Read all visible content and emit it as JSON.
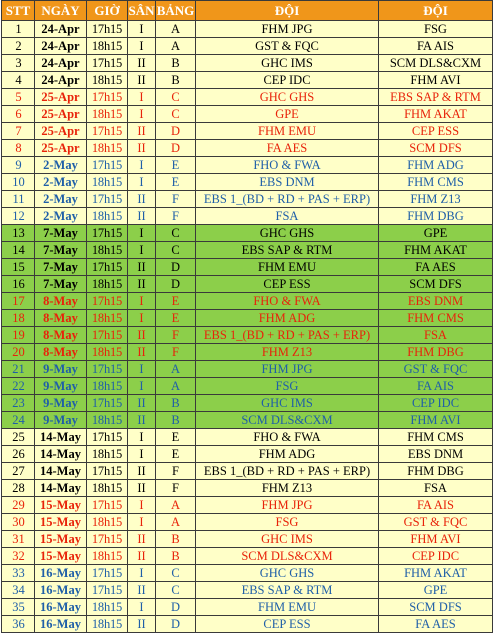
{
  "headers": {
    "stt": "STT",
    "ngay": "NGÀY",
    "gio": "GIỜ",
    "san": "SÂN",
    "bang": "BẢNG",
    "doi1": "ĐỘI",
    "doi2": "ĐỘI"
  },
  "colors": {
    "header_bg": "#f0961a",
    "default_bg": "#ffffc8",
    "green_bg": "#8ccf4a",
    "black": "#000000",
    "red": "#e8230a",
    "blue": "#1f5fa8"
  },
  "rows": [
    {
      "stt": "1",
      "date": "24-Apr",
      "time": "17h15",
      "court": "I",
      "group": "A",
      "team1": "FHM JPG",
      "team2": "FSG",
      "bg": "default",
      "color": "black"
    },
    {
      "stt": "2",
      "date": "24-Apr",
      "time": "18h15",
      "court": "I",
      "group": "A",
      "team1": "GST & FQC",
      "team2": "FA AIS",
      "bg": "default",
      "color": "black"
    },
    {
      "stt": "3",
      "date": "24-Apr",
      "time": "17h15",
      "court": "II",
      "group": "B",
      "team1": "GHC IMS",
      "team2": "SCM DLS&CXM",
      "bg": "default",
      "color": "black"
    },
    {
      "stt": "4",
      "date": "24-Apr",
      "time": "18h15",
      "court": "II",
      "group": "B",
      "team1": "CEP IDC",
      "team2": "FHM AVI",
      "bg": "default",
      "color": "black"
    },
    {
      "stt": "5",
      "date": "25-Apr",
      "time": "17h15",
      "court": "I",
      "group": "C",
      "team1": "GHC GHS",
      "team2": "EBS SAP & RTM",
      "bg": "default",
      "color": "red"
    },
    {
      "stt": "6",
      "date": "25-Apr",
      "time": "18h15",
      "court": "I",
      "group": "C",
      "team1": "GPE",
      "team2": "FHM AKAT",
      "bg": "default",
      "color": "red"
    },
    {
      "stt": "7",
      "date": "25-Apr",
      "time": "17h15",
      "court": "II",
      "group": "D",
      "team1": "FHM EMU",
      "team2": "CEP ESS",
      "bg": "default",
      "color": "red"
    },
    {
      "stt": "8",
      "date": "25-Apr",
      "time": "18h15",
      "court": "II",
      "group": "D",
      "team1": "FA AES",
      "team2": "SCM DFS",
      "bg": "default",
      "color": "red"
    },
    {
      "stt": "9",
      "date": "2-May",
      "time": "17h15",
      "court": "I",
      "group": "E",
      "team1": "FHO & FWA",
      "team2": "FHM ADG",
      "bg": "default",
      "color": "blue"
    },
    {
      "stt": "10",
      "date": "2-May",
      "time": "18h15",
      "court": "I",
      "group": "E",
      "team1": "EBS DNM",
      "team2": "FHM CMS",
      "bg": "default",
      "color": "blue"
    },
    {
      "stt": "11",
      "date": "2-May",
      "time": "17h15",
      "court": "II",
      "group": "F",
      "team1": "EBS 1_(BD + RD + PAS + ERP)",
      "team2": "FHM Z13",
      "bg": "default",
      "color": "blue"
    },
    {
      "stt": "12",
      "date": "2-May",
      "time": "18h15",
      "court": "II",
      "group": "F",
      "team1": "FSA",
      "team2": "FHM DBG",
      "bg": "default",
      "color": "blue"
    },
    {
      "stt": "13",
      "date": "7-May",
      "time": "17h15",
      "court": "I",
      "group": "C",
      "team1": "GHC GHS",
      "team2": "GPE",
      "bg": "green",
      "color": "black"
    },
    {
      "stt": "14",
      "date": "7-May",
      "time": "18h15",
      "court": "I",
      "group": "C",
      "team1": "EBS SAP & RTM",
      "team2": "FHM AKAT",
      "bg": "green",
      "color": "black"
    },
    {
      "stt": "15",
      "date": "7-May",
      "time": "17h15",
      "court": "II",
      "group": "D",
      "team1": "FHM EMU",
      "team2": "FA AES",
      "bg": "green",
      "color": "black"
    },
    {
      "stt": "16",
      "date": "7-May",
      "time": "18h15",
      "court": "II",
      "group": "D",
      "team1": "CEP ESS",
      "team2": "SCM DFS",
      "bg": "green",
      "color": "black"
    },
    {
      "stt": "17",
      "date": "8-May",
      "time": "17h15",
      "court": "I",
      "group": "E",
      "team1": "FHO & FWA",
      "team2": "EBS DNM",
      "bg": "green",
      "color": "red"
    },
    {
      "stt": "18",
      "date": "8-May",
      "time": "18h15",
      "court": "I",
      "group": "E",
      "team1": "FHM ADG",
      "team2": "FHM CMS",
      "bg": "green",
      "color": "red"
    },
    {
      "stt": "19",
      "date": "8-May",
      "time": "17h15",
      "court": "II",
      "group": "F",
      "team1": "EBS 1_(BD + RD + PAS + ERP)",
      "team2": "FSA",
      "bg": "green",
      "color": "red"
    },
    {
      "stt": "20",
      "date": "8-May",
      "time": "18h15",
      "court": "II",
      "group": "F",
      "team1": "FHM Z13",
      "team2": "FHM DBG",
      "bg": "green",
      "color": "red"
    },
    {
      "stt": "21",
      "date": "9-May",
      "time": "17h15",
      "court": "I",
      "group": "A",
      "team1": "FHM JPG",
      "team2": "GST & FQC",
      "bg": "green",
      "color": "blue"
    },
    {
      "stt": "22",
      "date": "9-May",
      "time": "18h15",
      "court": "I",
      "group": "A",
      "team1": "FSG",
      "team2": "FA AIS",
      "bg": "green",
      "color": "blue"
    },
    {
      "stt": "23",
      "date": "9-May",
      "time": "17h15",
      "court": "II",
      "group": "B",
      "team1": "GHC IMS",
      "team2": "CEP IDC",
      "bg": "green",
      "color": "blue"
    },
    {
      "stt": "24",
      "date": "9-May",
      "time": "18h15",
      "court": "II",
      "group": "B",
      "team1": "SCM DLS&CXM",
      "team2": "FHM AVI",
      "bg": "green",
      "color": "blue"
    },
    {
      "stt": "25",
      "date": "14-May",
      "time": "17h15",
      "court": "I",
      "group": "E",
      "team1": "FHO & FWA",
      "team2": "FHM CMS",
      "bg": "default",
      "color": "black"
    },
    {
      "stt": "26",
      "date": "14-May",
      "time": "18h15",
      "court": "I",
      "group": "E",
      "team1": "FHM ADG",
      "team2": "EBS DNM",
      "bg": "default",
      "color": "black"
    },
    {
      "stt": "27",
      "date": "14-May",
      "time": "17h15",
      "court": "II",
      "group": "F",
      "team1": "EBS 1_(BD + RD + PAS + ERP)",
      "team2": "FHM DBG",
      "bg": "default",
      "color": "black"
    },
    {
      "stt": "28",
      "date": "14-May",
      "time": "18h15",
      "court": "II",
      "group": "F",
      "team1": "FHM Z13",
      "team2": "FSA",
      "bg": "default",
      "color": "black"
    },
    {
      "stt": "29",
      "date": "15-May",
      "time": "17h15",
      "court": "I",
      "group": "A",
      "team1": "FHM JPG",
      "team2": "FA AIS",
      "bg": "default",
      "color": "red"
    },
    {
      "stt": "30",
      "date": "15-May",
      "time": "18h15",
      "court": "I",
      "group": "A",
      "team1": "FSG",
      "team2": "GST & FQC",
      "bg": "default",
      "color": "red"
    },
    {
      "stt": "31",
      "date": "15-May",
      "time": "17h15",
      "court": "II",
      "group": "B",
      "team1": "GHC IMS",
      "team2": "FHM AVI",
      "bg": "default",
      "color": "red"
    },
    {
      "stt": "32",
      "date": "15-May",
      "time": "18h15",
      "court": "II",
      "group": "B",
      "team1": "SCM DLS&CXM",
      "team2": "CEP IDC",
      "bg": "default",
      "color": "red"
    },
    {
      "stt": "33",
      "date": "16-May",
      "time": "17h15",
      "court": "I",
      "group": "C",
      "team1": "GHC GHS",
      "team2": "FHM AKAT",
      "bg": "default",
      "color": "blue"
    },
    {
      "stt": "34",
      "date": "16-May",
      "time": "17h15",
      "court": "II",
      "group": "C",
      "team1": "EBS SAP & RTM",
      "team2": "GPE",
      "bg": "default",
      "color": "blue"
    },
    {
      "stt": "35",
      "date": "16-May",
      "time": "18h15",
      "court": "I",
      "group": "D",
      "team1": "FHM EMU",
      "team2": "SCM DFS",
      "bg": "default",
      "color": "blue"
    },
    {
      "stt": "36",
      "date": "16-May",
      "time": "18h15",
      "court": "II",
      "group": "D",
      "team1": "CEP ESS",
      "team2": "FA AES",
      "bg": "default",
      "color": "blue"
    }
  ]
}
